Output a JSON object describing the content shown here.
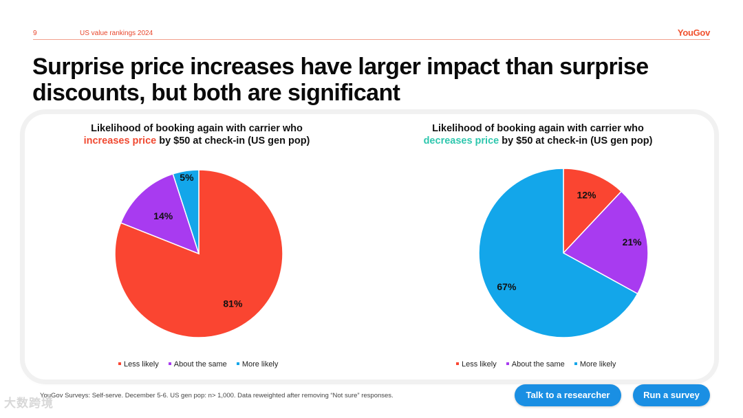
{
  "header": {
    "page_number": "9",
    "section": "US value rankings 2024",
    "brand": "YouGov"
  },
  "title": "Surprise price increases have larger impact than surprise discounts, but both are significant",
  "chart_data": [
    {
      "type": "pie",
      "title": {
        "line1": "Likelihood of booking again with carrier who",
        "highlight": "increases price",
        "rest": " by $50 at check-in (US gen pop)"
      },
      "highlight_color": "#f04a32",
      "series": [
        {
          "name": "Less likely",
          "value": 81,
          "label": "81%",
          "color": "#fa4531"
        },
        {
          "name": "About the same",
          "value": 14,
          "label": "14%",
          "color": "#a83bf0"
        },
        {
          "name": "More likely",
          "value": 5,
          "label": "5%",
          "color": "#13a6ea"
        }
      ],
      "legend_position": "bottom"
    },
    {
      "type": "pie",
      "title": {
        "line1": "Likelihood of booking again with carrier who",
        "highlight": "decreases price",
        "rest": " by $50 at check-in (US gen pop)"
      },
      "highlight_color": "#2fc7ae",
      "series": [
        {
          "name": "Less likely",
          "value": 12,
          "label": "12%",
          "color": "#fa4531"
        },
        {
          "name": "About the same",
          "value": 21,
          "label": "21%",
          "color": "#a83bf0"
        },
        {
          "name": "More likely",
          "value": 67,
          "label": "67%",
          "color": "#13a6ea"
        }
      ],
      "legend_position": "bottom"
    }
  ],
  "footnote": "YouGov Surveys: Self-serve. December 5-6. US gen pop: n> 1,000. Data reweighted after removing “Not sure” responses.",
  "buttons": {
    "talk": "Talk to a researcher",
    "run": "Run a survey"
  },
  "watermark": "大数跨境"
}
